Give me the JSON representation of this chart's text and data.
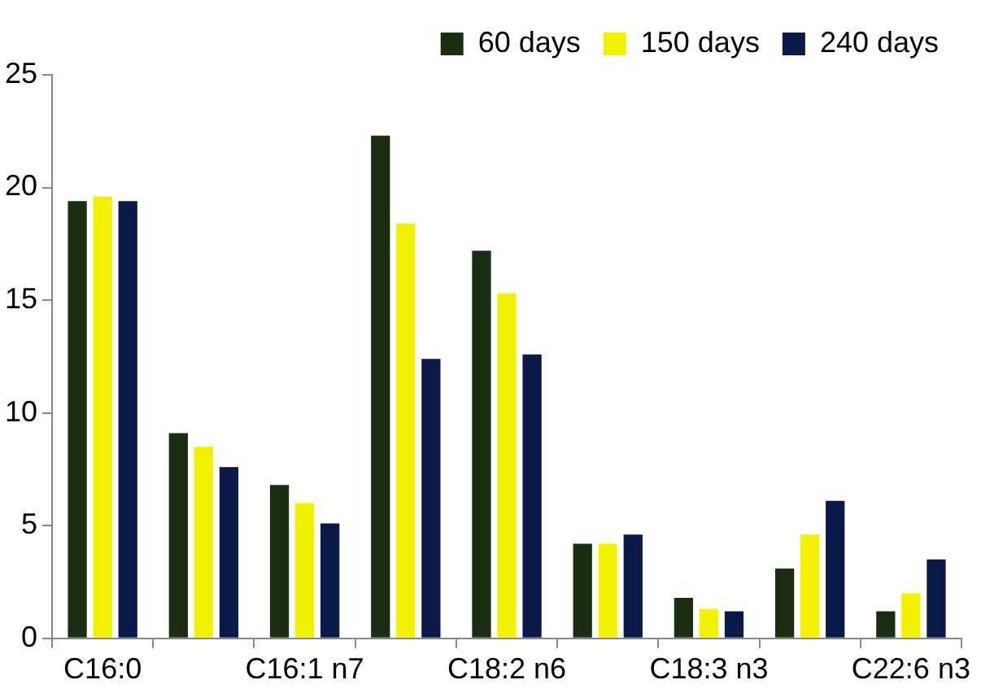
{
  "chart_data": {
    "type": "bar",
    "categories": [
      "C16:0",
      null,
      "C16:1 n7",
      null,
      "C18:2 n6",
      null,
      "C18:3 n3",
      null,
      "C22:6 n3"
    ],
    "series": [
      {
        "name": "60 days",
        "color": "#1b2e14",
        "values": [
          19.4,
          9.1,
          6.8,
          22.3,
          17.2,
          4.2,
          1.8,
          3.1,
          1.2
        ]
      },
      {
        "name": "150 days",
        "color": "#f2f200",
        "values": [
          19.6,
          8.5,
          6.0,
          18.4,
          15.3,
          4.2,
          1.3,
          4.6,
          2.0
        ]
      },
      {
        "name": "240 days",
        "color": "#0b1a48",
        "values": [
          19.4,
          7.6,
          5.1,
          12.4,
          12.6,
          4.6,
          1.2,
          6.1,
          3.5
        ]
      }
    ],
    "ylim": [
      0,
      25
    ],
    "yticks": [
      0,
      5,
      10,
      15,
      20,
      25
    ],
    "grid": false,
    "legend": "top"
  }
}
